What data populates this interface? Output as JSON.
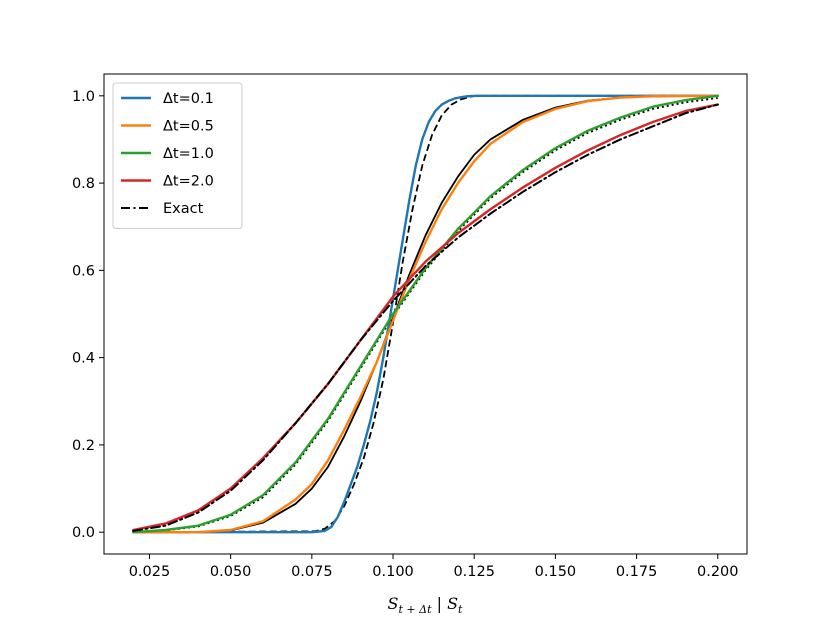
{
  "chart_data": {
    "type": "line",
    "title": "",
    "xlabel": "S_{t+Δt} | S_t",
    "xlabel_parts": {
      "main": "S",
      "sub": "t + Δt",
      "sep": " | ",
      "main2": "S",
      "sub2": "t"
    },
    "ylabel": "",
    "xlim": [
      0.011,
      0.209
    ],
    "ylim": [
      -0.05,
      1.05
    ],
    "xticks": [
      0.025,
      0.05,
      0.075,
      0.1,
      0.125,
      0.15,
      0.175,
      0.2
    ],
    "xtick_labels": [
      "0.025",
      "0.050",
      "0.075",
      "0.100",
      "0.125",
      "0.150",
      "0.175",
      "0.200"
    ],
    "yticks": [
      0.0,
      0.2,
      0.4,
      0.6,
      0.8,
      1.0
    ],
    "ytick_labels": [
      "0.0",
      "0.2",
      "0.4",
      "0.6",
      "0.8",
      "1.0"
    ],
    "grid": false,
    "legend_placement": "top-left",
    "series": [
      {
        "name": "Δt=0.1",
        "color": "#1f77b4",
        "x": [
          0.02,
          0.075,
          0.079,
          0.081,
          0.083,
          0.085,
          0.087,
          0.089,
          0.091,
          0.093,
          0.095,
          0.097,
          0.099,
          0.101,
          0.103,
          0.105,
          0.107,
          0.109,
          0.111,
          0.113,
          0.115,
          0.117,
          0.119,
          0.121,
          0.123,
          0.126,
          0.2
        ],
        "y": [
          0.0,
          0.0,
          0.003,
          0.012,
          0.035,
          0.07,
          0.11,
          0.15,
          0.2,
          0.255,
          0.32,
          0.4,
          0.49,
          0.58,
          0.67,
          0.76,
          0.84,
          0.9,
          0.94,
          0.965,
          0.98,
          0.988,
          0.994,
          0.997,
          0.999,
          1.0,
          1.0
        ]
      },
      {
        "name": "Δt=0.5",
        "color": "#ff7f0e",
        "x": [
          0.02,
          0.04,
          0.05,
          0.06,
          0.07,
          0.075,
          0.08,
          0.085,
          0.09,
          0.095,
          0.1,
          0.105,
          0.11,
          0.115,
          0.12,
          0.125,
          0.13,
          0.14,
          0.15,
          0.16,
          0.17,
          0.18,
          0.2
        ],
        "y": [
          0.0,
          0.0,
          0.005,
          0.025,
          0.075,
          0.11,
          0.165,
          0.235,
          0.31,
          0.39,
          0.485,
          0.58,
          0.665,
          0.74,
          0.8,
          0.85,
          0.89,
          0.94,
          0.97,
          0.988,
          0.996,
          0.999,
          1.0
        ]
      },
      {
        "name": "Δt=1.0",
        "color": "#2ca02c",
        "x": [
          0.02,
          0.03,
          0.04,
          0.05,
          0.06,
          0.07,
          0.08,
          0.09,
          0.1,
          0.11,
          0.12,
          0.13,
          0.14,
          0.15,
          0.16,
          0.17,
          0.18,
          0.19,
          0.2
        ],
        "y": [
          0.0,
          0.005,
          0.015,
          0.04,
          0.085,
          0.16,
          0.26,
          0.38,
          0.5,
          0.605,
          0.695,
          0.77,
          0.83,
          0.88,
          0.92,
          0.95,
          0.975,
          0.99,
          1.0
        ]
      },
      {
        "name": "Δt=2.0",
        "color": "#d62728",
        "x": [
          0.02,
          0.03,
          0.04,
          0.05,
          0.06,
          0.07,
          0.08,
          0.09,
          0.1,
          0.11,
          0.12,
          0.13,
          0.14,
          0.15,
          0.16,
          0.17,
          0.18,
          0.19,
          0.2
        ],
        "y": [
          0.005,
          0.02,
          0.05,
          0.1,
          0.17,
          0.25,
          0.34,
          0.44,
          0.54,
          0.62,
          0.685,
          0.74,
          0.79,
          0.835,
          0.875,
          0.91,
          0.94,
          0.965,
          0.98
        ]
      },
      {
        "name": "Exact",
        "color": "#000000",
        "dash": "dashdot",
        "x": [
          0.02,
          0.03,
          0.04,
          0.05,
          0.06,
          0.07,
          0.08,
          0.09,
          0.1,
          0.11,
          0.12,
          0.13,
          0.14,
          0.15,
          0.16,
          0.17,
          0.18,
          0.19,
          0.2
        ],
        "y": [
          0.003,
          0.015,
          0.045,
          0.095,
          0.165,
          0.25,
          0.34,
          0.44,
          0.53,
          0.61,
          0.675,
          0.73,
          0.78,
          0.825,
          0.865,
          0.9,
          0.93,
          0.96,
          0.98
        ]
      }
    ],
    "reference_curves": [
      {
        "color": "#000000",
        "dash": "dashed",
        "x": [
          0.02,
          0.076,
          0.079,
          0.082,
          0.085,
          0.088,
          0.091,
          0.094,
          0.097,
          0.1,
          0.103,
          0.106,
          0.109,
          0.112,
          0.115,
          0.118,
          0.121,
          0.125,
          0.2
        ],
        "y": [
          0.0,
          0.002,
          0.008,
          0.025,
          0.06,
          0.11,
          0.17,
          0.25,
          0.35,
          0.48,
          0.62,
          0.74,
          0.84,
          0.91,
          0.955,
          0.98,
          0.992,
          1.0,
          1.0
        ]
      },
      {
        "color": "#000000",
        "dash": "solid",
        "x": [
          0.02,
          0.04,
          0.05,
          0.06,
          0.07,
          0.075,
          0.08,
          0.085,
          0.09,
          0.095,
          0.1,
          0.105,
          0.11,
          0.115,
          0.12,
          0.125,
          0.13,
          0.14,
          0.15,
          0.16,
          0.17,
          0.18,
          0.2
        ],
        "y": [
          0.0,
          0.0,
          0.004,
          0.022,
          0.065,
          0.1,
          0.15,
          0.22,
          0.3,
          0.39,
          0.49,
          0.59,
          0.68,
          0.755,
          0.815,
          0.865,
          0.9,
          0.945,
          0.973,
          0.989,
          0.996,
          0.999,
          1.0
        ]
      },
      {
        "color": "#000000",
        "dash": "dotted",
        "x": [
          0.02,
          0.03,
          0.04,
          0.05,
          0.06,
          0.07,
          0.08,
          0.09,
          0.1,
          0.11,
          0.12,
          0.13,
          0.14,
          0.15,
          0.16,
          0.17,
          0.18,
          0.19,
          0.2
        ],
        "y": [
          0.0,
          0.004,
          0.013,
          0.037,
          0.08,
          0.155,
          0.255,
          0.375,
          0.495,
          0.6,
          0.69,
          0.765,
          0.825,
          0.875,
          0.915,
          0.945,
          0.97,
          0.985,
          0.995
        ]
      }
    ]
  }
}
